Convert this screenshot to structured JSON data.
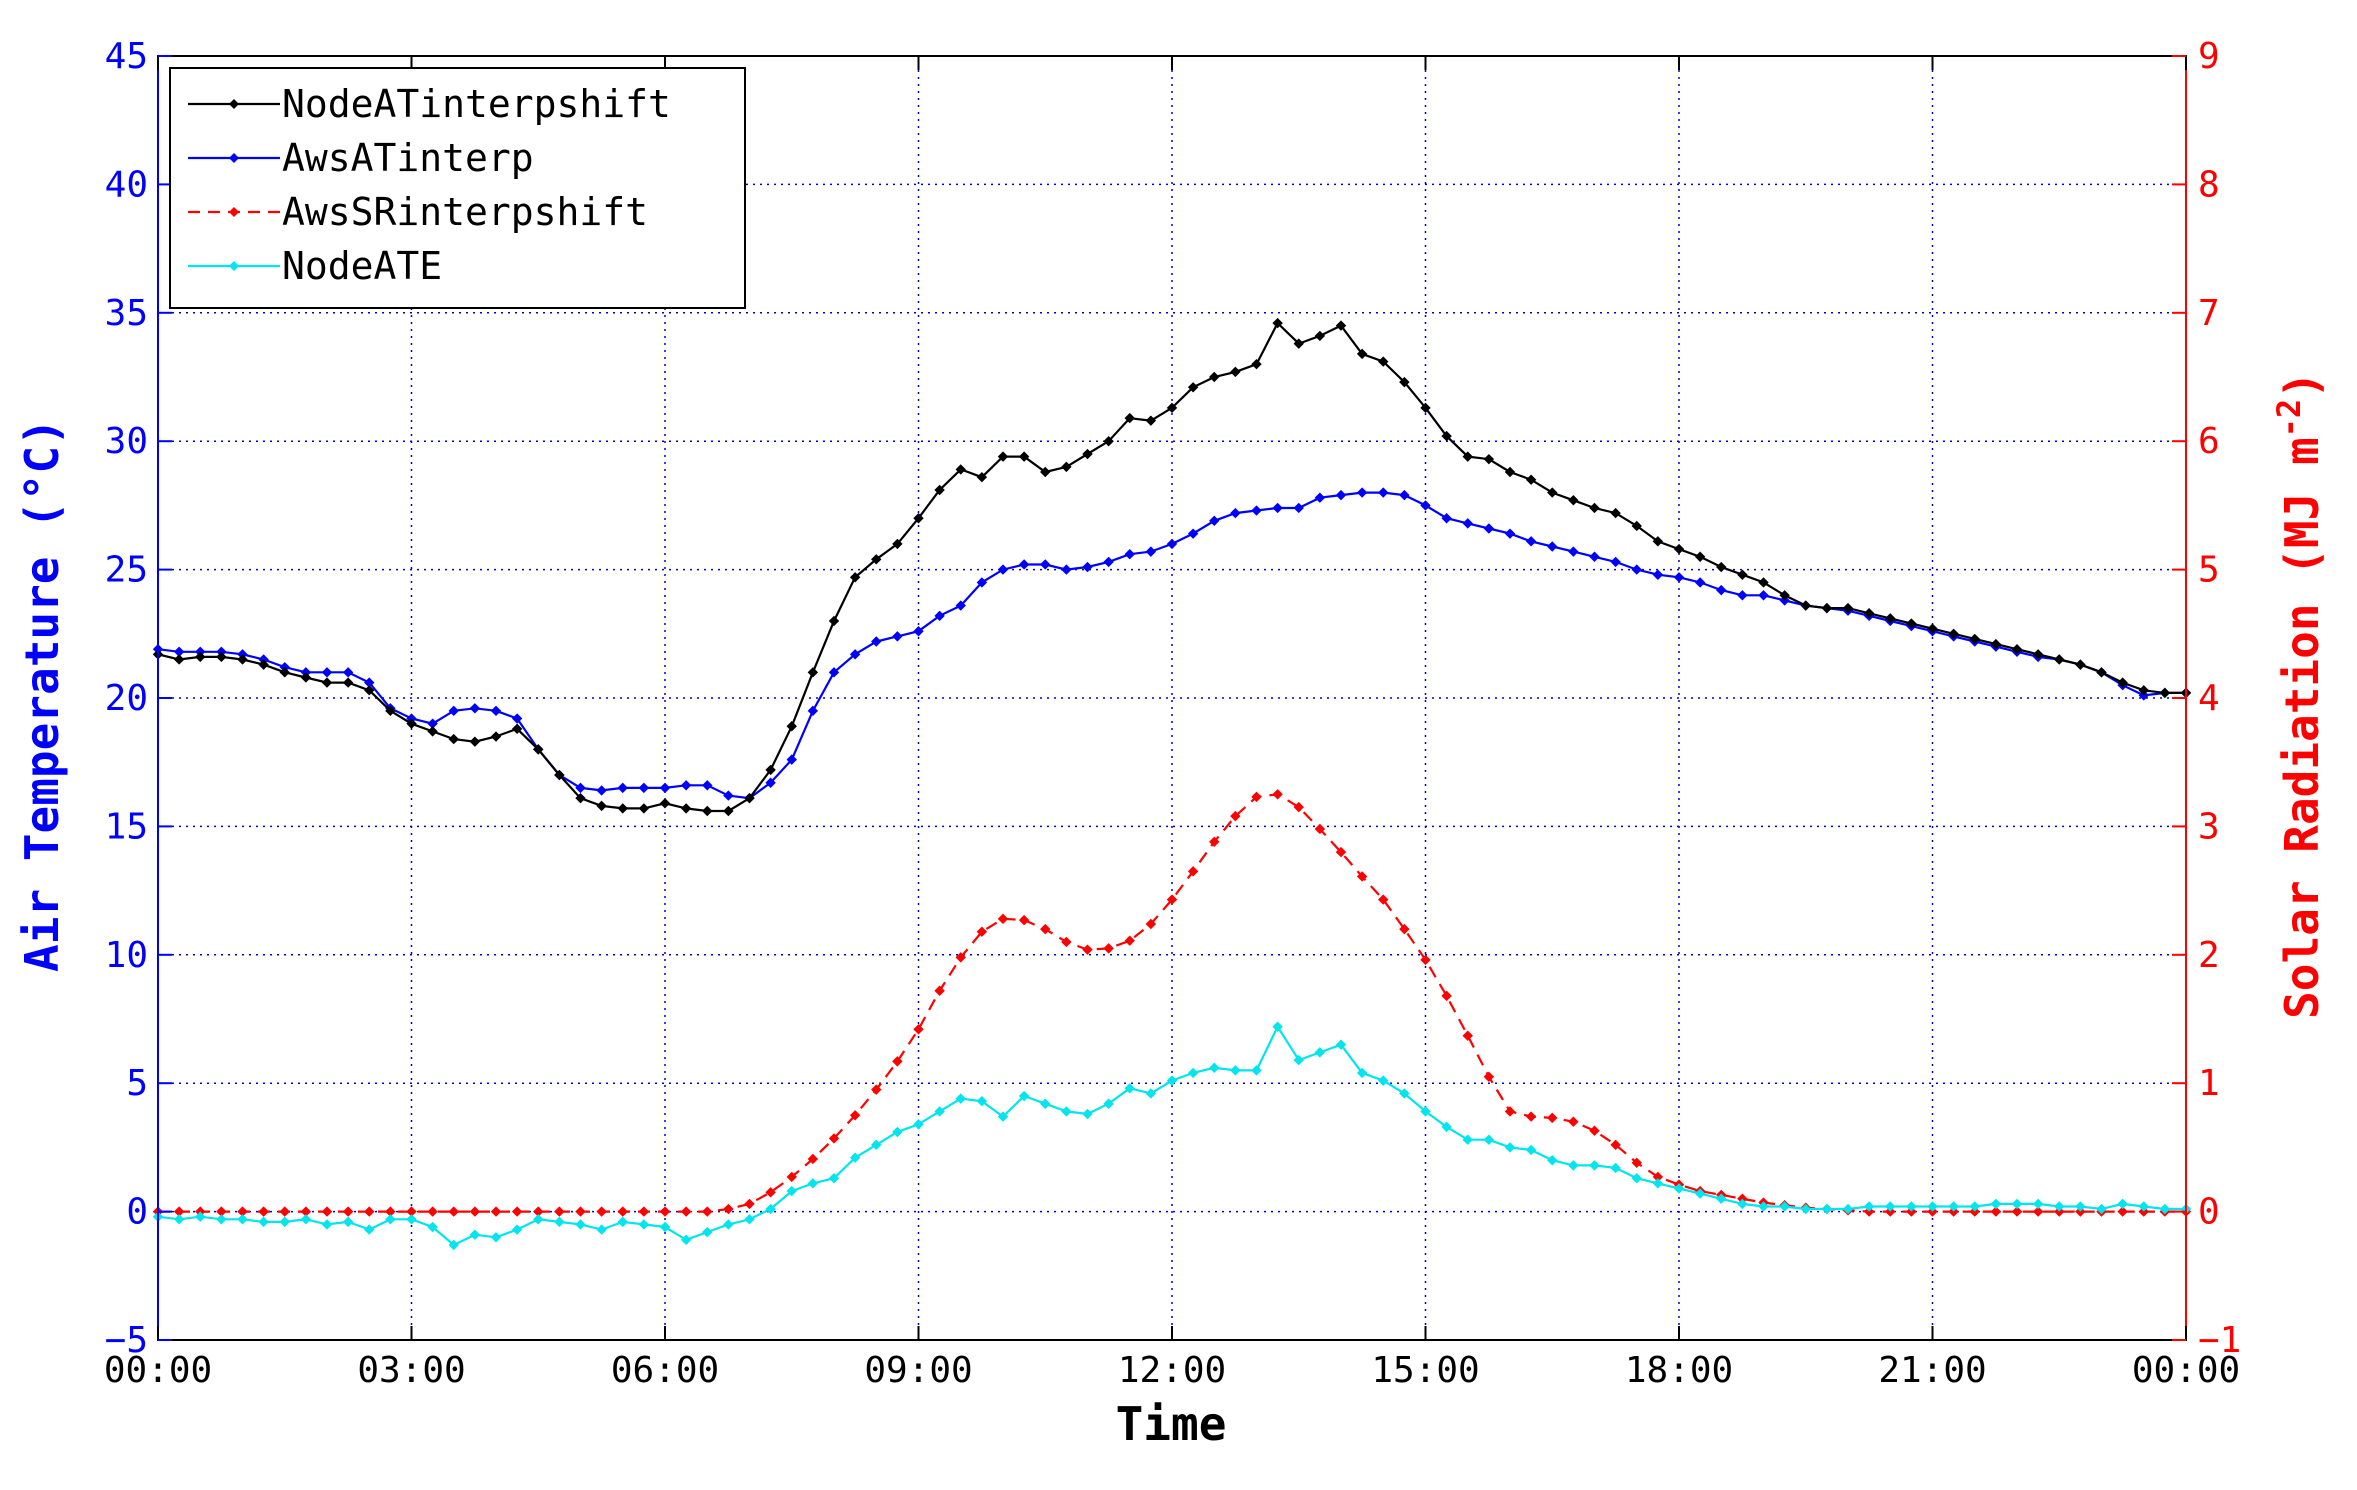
{
  "chart_data": {
    "type": "line",
    "title": "",
    "xlabel": "Time",
    "ylabel_left": "Air Temperature (°C)",
    "ylabel_right": "Solar Radiation (MJ m-2)",
    "ylabel_right_main": "Solar Radiation (MJ m",
    "ylabel_right_sup": "-2",
    "ylabel_right_close": ")",
    "x_unit": "hours",
    "xlim": [
      0,
      24
    ],
    "x_ticks": [
      0,
      3,
      6,
      9,
      12,
      15,
      18,
      21,
      24
    ],
    "x_tick_labels": [
      "00:00",
      "03:00",
      "06:00",
      "09:00",
      "12:00",
      "15:00",
      "18:00",
      "21:00",
      "00:00"
    ],
    "ylim_left": [
      -5,
      45
    ],
    "y_ticks_left": [
      -5,
      0,
      5,
      10,
      15,
      20,
      25,
      30,
      35,
      40,
      45
    ],
    "y_tick_labels_left": [
      "−5",
      "0",
      "5",
      "10",
      "15",
      "20",
      "25",
      "30",
      "35",
      "40",
      "45"
    ],
    "ylim_right": [
      -1,
      9
    ],
    "y_ticks_right": [
      -1,
      0,
      1,
      2,
      3,
      4,
      5,
      6,
      7,
      8,
      9
    ],
    "y_tick_labels_right": [
      "−1",
      "0",
      "1",
      "2",
      "3",
      "4",
      "5",
      "6",
      "7",
      "8",
      "9"
    ],
    "grid": true,
    "legend_position": "top-left",
    "colors": {
      "left_axis": "#0000ff",
      "right_axis": "#ff0000",
      "grid": "#0000cc",
      "frame": "#000000"
    },
    "series": [
      {
        "name": "NodeATinterpshift",
        "axis": "left",
        "color": "#000000",
        "dash": false,
        "x": [
          0,
          0.25,
          0.5,
          0.75,
          1,
          1.25,
          1.5,
          1.75,
          2,
          2.25,
          2.5,
          2.75,
          3,
          3.25,
          3.5,
          3.75,
          4,
          4.25,
          4.5,
          4.75,
          5,
          5.25,
          5.5,
          5.75,
          6,
          6.25,
          6.5,
          6.75,
          7,
          7.25,
          7.5,
          7.75,
          8,
          8.25,
          8.5,
          8.75,
          9,
          9.25,
          9.5,
          9.75,
          10,
          10.25,
          10.5,
          10.75,
          11,
          11.25,
          11.5,
          11.75,
          12,
          12.25,
          12.5,
          12.75,
          13,
          13.25,
          13.5,
          13.75,
          14,
          14.25,
          14.5,
          14.75,
          15,
          15.25,
          15.5,
          15.75,
          16,
          16.25,
          16.5,
          16.75,
          17,
          17.25,
          17.5,
          17.75,
          18,
          18.25,
          18.5,
          18.75,
          19,
          19.25,
          19.5,
          19.75,
          20,
          20.25,
          20.5,
          20.75,
          21,
          21.25,
          21.5,
          21.75,
          22,
          22.25,
          22.5,
          22.75,
          23,
          23.25,
          23.5,
          23.75,
          24
        ],
        "y": [
          21.7,
          21.5,
          21.6,
          21.6,
          21.5,
          21.3,
          21.0,
          20.8,
          20.6,
          20.6,
          20.3,
          19.5,
          19.0,
          18.7,
          18.4,
          18.3,
          18.5,
          18.8,
          18.0,
          17.0,
          16.1,
          15.8,
          15.7,
          15.7,
          15.9,
          15.7,
          15.6,
          15.6,
          16.1,
          17.2,
          18.9,
          21.0,
          23.0,
          24.7,
          25.4,
          26.0,
          27.0,
          28.1,
          28.9,
          28.6,
          29.4,
          29.4,
          28.8,
          29.0,
          29.5,
          30.0,
          30.9,
          30.8,
          31.3,
          32.1,
          32.5,
          32.7,
          33.0,
          34.6,
          33.8,
          34.1,
          34.5,
          33.4,
          33.1,
          32.3,
          31.3,
          30.2,
          29.4,
          29.3,
          28.8,
          28.5,
          28.0,
          27.7,
          27.4,
          27.2,
          26.7,
          26.1,
          25.8,
          25.5,
          25.1,
          24.8,
          24.5,
          24.0,
          23.6,
          23.5,
          23.5,
          23.3,
          23.1,
          22.9,
          22.7,
          22.5,
          22.3,
          22.1,
          21.9,
          21.7,
          21.5,
          21.3,
          21.0,
          20.6,
          20.3,
          20.2,
          20.2
        ]
      },
      {
        "name": "AwsATinterp",
        "axis": "left",
        "color": "#0000ff",
        "dash": false,
        "x": [
          0,
          0.25,
          0.5,
          0.75,
          1,
          1.25,
          1.5,
          1.75,
          2,
          2.25,
          2.5,
          2.75,
          3,
          3.25,
          3.5,
          3.75,
          4,
          4.25,
          4.5,
          4.75,
          5,
          5.25,
          5.5,
          5.75,
          6,
          6.25,
          6.5,
          6.75,
          7,
          7.25,
          7.5,
          7.75,
          8,
          8.25,
          8.5,
          8.75,
          9,
          9.25,
          9.5,
          9.75,
          10,
          10.25,
          10.5,
          10.75,
          11,
          11.25,
          11.5,
          11.75,
          12,
          12.25,
          12.5,
          12.75,
          13,
          13.25,
          13.5,
          13.75,
          14,
          14.25,
          14.5,
          14.75,
          15,
          15.25,
          15.5,
          15.75,
          16,
          16.25,
          16.5,
          16.75,
          17,
          17.25,
          17.5,
          17.75,
          18,
          18.25,
          18.5,
          18.75,
          19,
          19.25,
          19.5,
          19.75,
          20,
          20.25,
          20.5,
          20.75,
          21,
          21.25,
          21.5,
          21.75,
          22,
          22.25,
          22.5,
          22.75,
          23,
          23.25,
          23.5,
          23.75,
          24
        ],
        "y": [
          21.9,
          21.8,
          21.8,
          21.8,
          21.7,
          21.5,
          21.2,
          21.0,
          21.0,
          21.0,
          20.6,
          19.6,
          19.2,
          19.0,
          19.5,
          19.6,
          19.5,
          19.2,
          18.0,
          17.0,
          16.5,
          16.4,
          16.5,
          16.5,
          16.5,
          16.6,
          16.6,
          16.2,
          16.1,
          16.7,
          17.6,
          19.5,
          21.0,
          21.7,
          22.2,
          22.4,
          22.6,
          23.2,
          23.6,
          24.5,
          25.0,
          25.2,
          25.2,
          25.0,
          25.1,
          25.3,
          25.6,
          25.7,
          26.0,
          26.4,
          26.9,
          27.2,
          27.3,
          27.4,
          27.4,
          27.8,
          27.9,
          28.0,
          28.0,
          27.9,
          27.5,
          27.0,
          26.8,
          26.6,
          26.4,
          26.1,
          25.9,
          25.7,
          25.5,
          25.3,
          25.0,
          24.8,
          24.7,
          24.5,
          24.2,
          24.0,
          24.0,
          23.8,
          23.6,
          23.5,
          23.4,
          23.2,
          23.0,
          22.8,
          22.6,
          22.4,
          22.2,
          22.0,
          21.8,
          21.6,
          21.5,
          21.3,
          21.0,
          20.5,
          20.1,
          20.2,
          20.2
        ]
      },
      {
        "name": "AwsSRinterpshift",
        "axis": "right",
        "color": "#ff0000",
        "dash": true,
        "x": [
          0,
          0.25,
          0.5,
          0.75,
          1,
          1.25,
          1.5,
          1.75,
          2,
          2.25,
          2.5,
          2.75,
          3,
          3.25,
          3.5,
          3.75,
          4,
          4.25,
          4.5,
          4.75,
          5,
          5.25,
          5.5,
          5.75,
          6,
          6.25,
          6.5,
          6.75,
          7,
          7.25,
          7.5,
          7.75,
          8,
          8.25,
          8.5,
          8.75,
          9,
          9.25,
          9.5,
          9.75,
          10,
          10.25,
          10.5,
          10.75,
          11,
          11.25,
          11.5,
          11.75,
          12,
          12.25,
          12.5,
          12.75,
          13,
          13.25,
          13.5,
          13.75,
          14,
          14.25,
          14.5,
          14.75,
          15,
          15.25,
          15.5,
          15.75,
          16,
          16.25,
          16.5,
          16.75,
          17,
          17.25,
          17.5,
          17.75,
          18,
          18.25,
          18.5,
          18.75,
          19,
          19.25,
          19.5,
          19.75,
          20,
          20.25,
          20.5,
          20.75,
          21,
          21.25,
          21.5,
          21.75,
          22,
          22.25,
          22.5,
          22.75,
          23,
          23.25,
          23.5,
          23.75,
          24
        ],
        "y": [
          0,
          0,
          0,
          0,
          0,
          0,
          0,
          0,
          0,
          0,
          0,
          0,
          0,
          0,
          0,
          0,
          0,
          0,
          0,
          0,
          0,
          0,
          0,
          0,
          0,
          0,
          0,
          0.02,
          0.06,
          0.15,
          0.27,
          0.41,
          0.57,
          0.75,
          0.95,
          1.17,
          1.42,
          1.72,
          1.98,
          2.18,
          2.28,
          2.27,
          2.2,
          2.1,
          2.04,
          2.05,
          2.11,
          2.24,
          2.43,
          2.65,
          2.88,
          3.08,
          3.23,
          3.25,
          3.15,
          2.98,
          2.8,
          2.61,
          2.43,
          2.2,
          1.96,
          1.68,
          1.37,
          1.05,
          0.78,
          0.74,
          0.73,
          0.7,
          0.63,
          0.52,
          0.38,
          0.27,
          0.21,
          0.16,
          0.13,
          0.1,
          0.07,
          0.05,
          0.03,
          0.02,
          0.01,
          0,
          0,
          0,
          0,
          0,
          0,
          0,
          0,
          0,
          0,
          0,
          0,
          0,
          0,
          0,
          0
        ]
      },
      {
        "name": "NodeATE",
        "axis": "left",
        "color": "#00e5ee",
        "dash": false,
        "x": [
          0,
          0.25,
          0.5,
          0.75,
          1,
          1.25,
          1.5,
          1.75,
          2,
          2.25,
          2.5,
          2.75,
          3,
          3.25,
          3.5,
          3.75,
          4,
          4.25,
          4.5,
          4.75,
          5,
          5.25,
          5.5,
          5.75,
          6,
          6.25,
          6.5,
          6.75,
          7,
          7.25,
          7.5,
          7.75,
          8,
          8.25,
          8.5,
          8.75,
          9,
          9.25,
          9.5,
          9.75,
          10,
          10.25,
          10.5,
          10.75,
          11,
          11.25,
          11.5,
          11.75,
          12,
          12.25,
          12.5,
          12.75,
          13,
          13.25,
          13.5,
          13.75,
          14,
          14.25,
          14.5,
          14.75,
          15,
          15.25,
          15.5,
          15.75,
          16,
          16.25,
          16.5,
          16.75,
          17,
          17.25,
          17.5,
          17.75,
          18,
          18.25,
          18.5,
          18.75,
          19,
          19.25,
          19.5,
          19.75,
          20,
          20.25,
          20.5,
          20.75,
          21,
          21.25,
          21.5,
          21.75,
          22,
          22.25,
          22.5,
          22.75,
          23,
          23.25,
          23.5,
          23.75,
          24
        ],
        "y": [
          -0.2,
          -0.3,
          -0.2,
          -0.3,
          -0.3,
          -0.4,
          -0.4,
          -0.3,
          -0.5,
          -0.4,
          -0.7,
          -0.3,
          -0.3,
          -0.6,
          -1.3,
          -0.9,
          -1.0,
          -0.7,
          -0.3,
          -0.4,
          -0.5,
          -0.7,
          -0.4,
          -0.5,
          -0.6,
          -1.1,
          -0.8,
          -0.5,
          -0.3,
          0.1,
          0.8,
          1.1,
          1.3,
          2.1,
          2.6,
          3.1,
          3.4,
          3.9,
          4.4,
          4.3,
          3.7,
          4.5,
          4.2,
          3.9,
          3.8,
          4.2,
          4.8,
          4.6,
          5.1,
          5.4,
          5.6,
          5.5,
          5.5,
          7.2,
          5.9,
          6.2,
          6.5,
          5.4,
          5.1,
          4.6,
          3.9,
          3.3,
          2.8,
          2.8,
          2.5,
          2.4,
          2.0,
          1.8,
          1.8,
          1.7,
          1.3,
          1.1,
          0.9,
          0.7,
          0.5,
          0.3,
          0.2,
          0.2,
          0.1,
          0.1,
          0.1,
          0.2,
          0.2,
          0.2,
          0.2,
          0.2,
          0.2,
          0.3,
          0.3,
          0.3,
          0.2,
          0.2,
          0.1,
          0.3,
          0.2,
          0.1,
          0.1
        ]
      }
    ]
  }
}
